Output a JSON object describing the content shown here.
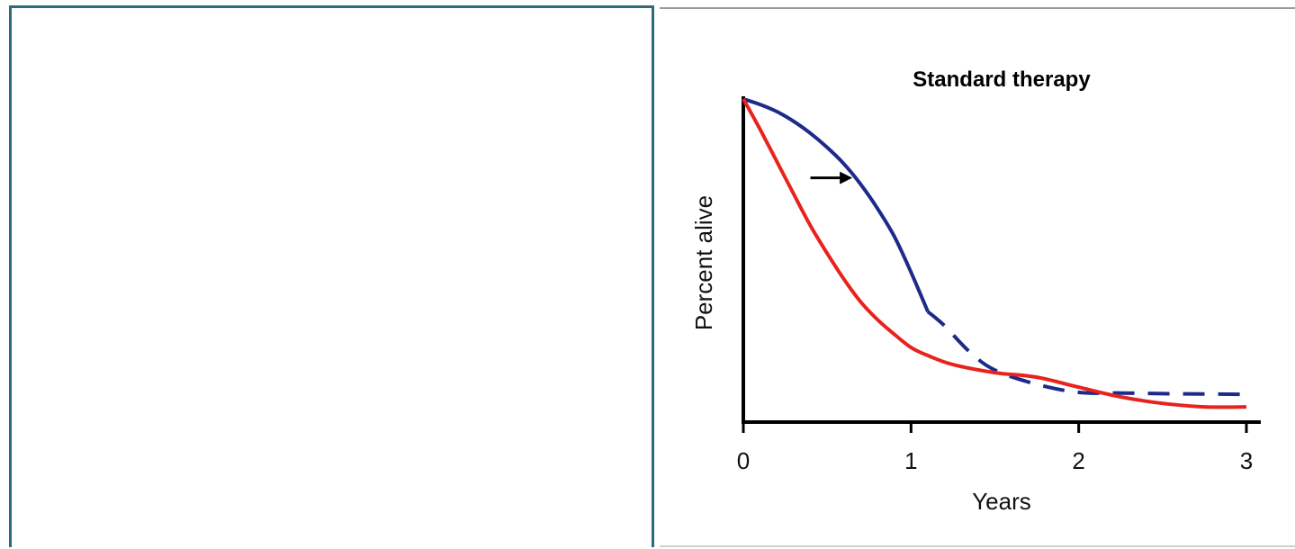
{
  "chart_data": {
    "type": "line",
    "title": "Standard therapy",
    "xlabel": "Years",
    "ylabel": "Percent alive",
    "xlim": [
      0,
      3
    ],
    "ylim": [
      0,
      100
    ],
    "x_ticks": [
      "0",
      "1",
      "2",
      "3"
    ],
    "y_ticks_labeled": false,
    "grid": false,
    "legend": "none",
    "series": [
      {
        "color": "#1c2a8a",
        "style": "solid",
        "x": [
          0,
          0.1,
          0.2,
          0.3,
          0.4,
          0.5,
          0.6,
          0.7,
          0.8,
          0.9,
          1.0,
          1.1
        ],
        "y": [
          100,
          98.3,
          96.1,
          93.1,
          89.4,
          85.0,
          79.9,
          73.6,
          66.1,
          57.5,
          46.4,
          34.2
        ]
      },
      {
        "color": "#1c2a8a",
        "style": "dashed",
        "x": [
          1.1,
          1.2,
          1.35,
          1.5,
          1.75,
          2.0,
          2.25,
          2.5,
          2.75,
          3.0
        ],
        "y": [
          34.2,
          29.8,
          21.7,
          16.1,
          11.7,
          9.2,
          9.0,
          8.8,
          8.7,
          8.6
        ]
      },
      {
        "color": "#e8221d",
        "style": "solid",
        "x": [
          0,
          0.1,
          0.2,
          0.3,
          0.4,
          0.5,
          0.6,
          0.7,
          0.8,
          0.9,
          1.0,
          1.1,
          1.25,
          1.5,
          1.75,
          2.0,
          2.25,
          2.5,
          2.75,
          3.0
        ],
        "y": [
          100,
          90.6,
          80.6,
          70.6,
          60.8,
          52.2,
          44.2,
          37.2,
          31.7,
          27.2,
          23.1,
          20.6,
          17.8,
          15.3,
          13.9,
          10.8,
          7.8,
          5.8,
          4.7,
          4.7
        ]
      }
    ],
    "annotations": [
      {
        "type": "arrow",
        "direction": "right",
        "x_from": 0.4,
        "x_to": 0.65,
        "y": 75.6
      }
    ]
  }
}
